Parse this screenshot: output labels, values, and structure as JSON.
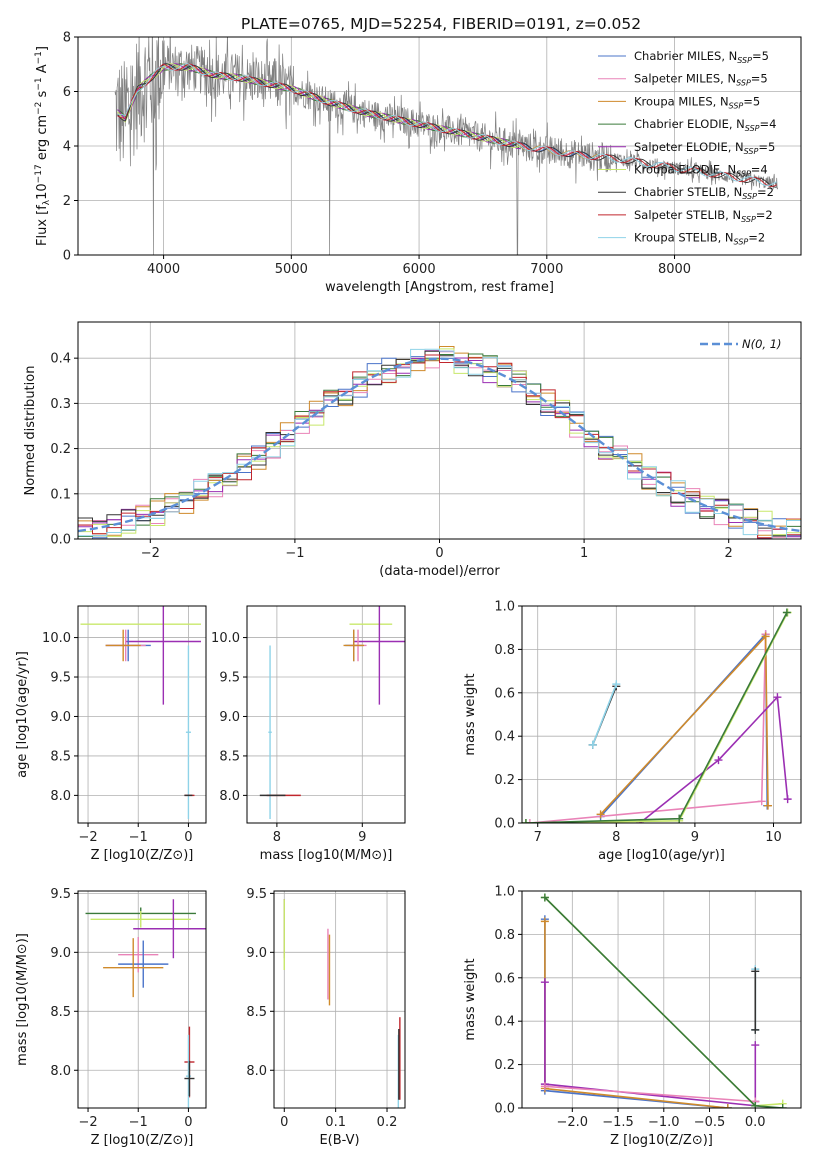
{
  "figure": {
    "title": "PLATE=0765, MJD=52254, FIBERID=0191, z=0.052",
    "colors": {
      "Chabrier MILES": "#4b74c9",
      "Salpeter MILES": "#e983b8",
      "Kroupa MILES": "#cf8a2b",
      "Chabrier ELODIE": "#3a7a3a",
      "Salpeter ELODIE": "#9b2fb3",
      "Kroupa ELODIE": "#c8e86b",
      "Chabrier STELIB": "#333333",
      "Salpeter STELIB": "#c0262d",
      "Kroupa STELIB": "#8fd3e8",
      "data": "#808080",
      "normal": "#5b8fd6"
    }
  },
  "chart_data": [
    {
      "type": "line",
      "id": "spectrum",
      "title": "PLATE=0765, MJD=52254, FIBERID=0191, z=0.052",
      "xlabel": "wavelength [Angstrom, rest frame]",
      "ylabel": "Flux [f_λ 10^-17 erg cm^-2 s^-1 A^-1]",
      "xlim": [
        3330,
        8990
      ],
      "ylim": [
        0,
        8
      ],
      "xticks": [
        4000,
        5000,
        6000,
        7000,
        8000
      ],
      "yticks": [
        0,
        2,
        4,
        6,
        8
      ],
      "legend_position": "top-right",
      "legend": [
        "Chabrier MILES, N_SSP=5",
        "Salpeter MILES, N_SSP=5",
        "Kroupa MILES, N_SSP=5",
        "Chabrier ELODIE, N_SSP=4",
        "Salpeter ELODIE, N_SSP=5",
        "Kroupa ELODIE, N_SSP=4",
        "Chabrier STELIB, N_SSP=2",
        "Salpeter STELIB, N_SSP=2",
        "Kroupa STELIB, N_SSP=2"
      ],
      "continuum": {
        "wavelength": [
          3620,
          3700,
          3800,
          3900,
          4000,
          4200,
          4400,
          4600,
          4800,
          5000,
          5300,
          5600,
          6000,
          6400,
          6800,
          7200,
          7600,
          8000,
          8400,
          8800
        ],
        "flux": [
          5.3,
          5.0,
          6.1,
          6.5,
          6.9,
          6.9,
          6.6,
          6.5,
          6.3,
          6.1,
          5.6,
          5.2,
          4.8,
          4.4,
          4.0,
          3.7,
          3.5,
          3.2,
          2.9,
          2.6
        ]
      }
    },
    {
      "type": "line",
      "id": "residuals",
      "xlabel": "(data-model)/error",
      "ylabel": "Normed distribution",
      "xlim": [
        -2.5,
        2.5
      ],
      "ylim": [
        0,
        0.48
      ],
      "xticks": [
        -2,
        -1,
        0,
        1,
        2
      ],
      "yticks": [
        0.0,
        0.1,
        0.2,
        0.3,
        0.4
      ],
      "legend_position": "top-right",
      "normal_label": "N(0, 1)"
    },
    {
      "type": "scatter",
      "id": "age-vs-z",
      "xlabel": "Z [log10(Z/Z⊙)]",
      "ylabel": "age [log10(age/yr)]",
      "xlim": [
        -2.2,
        0.35
      ],
      "ylim": [
        7.65,
        10.4
      ],
      "xticks": [
        -2,
        -1,
        0
      ],
      "yticks": [
        8.0,
        8.5,
        9.0,
        9.5,
        10.0
      ],
      "points": [
        {
          "series": "Kroupa ELODIE",
          "x": -0.95,
          "y": 10.17,
          "ex": 1.2,
          "ey": 0.0
        },
        {
          "series": "Salpeter ELODIE",
          "x": -0.5,
          "y": 9.95,
          "ex": 0.75,
          "ey": 0.8
        },
        {
          "series": "Chabrier MILES",
          "x": -1.2,
          "y": 9.9,
          "ex": 0.45,
          "ey": 0.2
        },
        {
          "series": "Salpeter MILES",
          "x": -1.25,
          "y": 9.9,
          "ex": 0.4,
          "ey": 0.2
        },
        {
          "series": "Kroupa MILES",
          "x": -1.3,
          "y": 9.9,
          "ex": 0.35,
          "ey": 0.2
        },
        {
          "series": "Kroupa STELIB",
          "x": 0.0,
          "y": 8.8,
          "ex": 0.05,
          "ey": 1.1
        },
        {
          "series": "Salpeter STELIB",
          "x": 0.02,
          "y": 8.0,
          "ex": 0.1,
          "ey": 0.0
        },
        {
          "series": "Chabrier STELIB",
          "x": 0.0,
          "y": 8.0,
          "ex": 0.08,
          "ey": 0.0
        }
      ]
    },
    {
      "type": "scatter",
      "id": "age-vs-mass",
      "xlabel": "mass [log10(M/M⊙)]",
      "ylim": [
        7.65,
        10.4
      ],
      "xlim": [
        7.65,
        9.5
      ],
      "xticks": [
        8,
        9
      ],
      "yticks": [
        8.0,
        8.5,
        9.0,
        9.5,
        10.0
      ],
      "points": [
        {
          "series": "Kroupa ELODIE",
          "x": 9.1,
          "y": 10.17,
          "ex": 0.25,
          "ey": 0.0
        },
        {
          "series": "Salpeter ELODIE",
          "x": 9.2,
          "y": 9.95,
          "ex": 0.3,
          "ey": 0.8
        },
        {
          "series": "Chabrier MILES",
          "x": 8.9,
          "y": 9.9,
          "ex": 0.1,
          "ey": 0.2
        },
        {
          "series": "Salpeter MILES",
          "x": 8.95,
          "y": 9.9,
          "ex": 0.1,
          "ey": 0.2
        },
        {
          "series": "Kroupa MILES",
          "x": 8.9,
          "y": 9.9,
          "ex": 0.12,
          "ey": 0.2
        },
        {
          "series": "Kroupa STELIB",
          "x": 7.92,
          "y": 8.8,
          "ex": 0.02,
          "ey": 1.1
        },
        {
          "series": "Salpeter STELIB",
          "x": 8.08,
          "y": 8.0,
          "ex": 0.2,
          "ey": 0.0
        },
        {
          "series": "Chabrier STELIB",
          "x": 7.95,
          "y": 8.0,
          "ex": 0.15,
          "ey": 0.0
        }
      ]
    },
    {
      "type": "line",
      "id": "weight-vs-age",
      "xlabel": "age [log10(age/yr)]",
      "ylabel": "mass weight",
      "xlim": [
        6.8,
        10.35
      ],
      "ylim": [
        0,
        1
      ],
      "xticks": [
        7,
        8,
        9,
        10
      ],
      "yticks": [
        0.0,
        0.2,
        0.4,
        0.6,
        0.8,
        1.0
      ],
      "series": [
        {
          "name": "Chabrier MILES",
          "x": [
            7.8,
            9.9,
            9.92
          ],
          "y": [
            0.03,
            0.87,
            0.08
          ]
        },
        {
          "name": "Salpeter MILES",
          "x": [
            6.9,
            9.85,
            9.9
          ],
          "y": [
            0.0,
            0.1,
            0.87
          ]
        },
        {
          "name": "Kroupa MILES",
          "x": [
            7.8,
            9.9,
            9.93
          ],
          "y": [
            0.04,
            0.86,
            0.08
          ]
        },
        {
          "name": "Salpeter ELODIE",
          "x": [
            8.3,
            9.3,
            10.05,
            10.18
          ],
          "y": [
            0.0,
            0.29,
            0.58,
            0.11
          ]
        },
        {
          "name": "Kroupa ELODIE",
          "x": [
            6.85,
            8.8,
            10.18
          ],
          "y": [
            0.0,
            0.01,
            0.97
          ]
        },
        {
          "name": "Chabrier ELODIE",
          "x": [
            6.85,
            8.8,
            10.17
          ],
          "y": [
            0.0,
            0.02,
            0.97
          ]
        },
        {
          "name": "Chabrier STELIB",
          "x": [
            7.7,
            8.0
          ],
          "y": [
            0.36,
            0.63
          ]
        },
        {
          "name": "Kroupa STELIB",
          "x": [
            7.7,
            8.0
          ],
          "y": [
            0.36,
            0.64
          ]
        }
      ]
    },
    {
      "type": "scatter",
      "id": "mass-vs-z",
      "xlabel": "Z [log10(Z/Z⊙)]",
      "ylabel": "mass [log10(M/M⊙)]",
      "xlim": [
        -2.2,
        0.35
      ],
      "ylim": [
        7.68,
        9.52
      ],
      "xticks": [
        -2,
        -1,
        0
      ],
      "yticks": [
        8.0,
        8.5,
        9.0,
        9.5
      ],
      "points": [
        {
          "series": "Chabrier ELODIE",
          "x": -0.95,
          "y": 9.33,
          "ex": 1.1,
          "ey": 0.05
        },
        {
          "series": "Kroupa ELODIE",
          "x": -0.95,
          "y": 9.28,
          "ex": 1.0,
          "ey": 0.07
        },
        {
          "series": "Salpeter ELODIE",
          "x": -0.3,
          "y": 9.2,
          "ex": 0.8,
          "ey": 0.25
        },
        {
          "series": "Salpeter MILES",
          "x": -1.0,
          "y": 8.98,
          "ex": 0.4,
          "ey": 0.15
        },
        {
          "series": "Chabrier MILES",
          "x": -0.9,
          "y": 8.9,
          "ex": 0.5,
          "ey": 0.2
        },
        {
          "series": "Kroupa MILES",
          "x": -1.1,
          "y": 8.87,
          "ex": 0.6,
          "ey": 0.25
        },
        {
          "series": "Salpeter STELIB",
          "x": 0.02,
          "y": 8.07,
          "ex": 0.1,
          "ey": 0.3
        },
        {
          "series": "Kroupa STELIB",
          "x": 0.0,
          "y": 7.95,
          "ex": 0.05,
          "ey": 0.35
        },
        {
          "series": "Chabrier STELIB",
          "x": 0.02,
          "y": 7.93,
          "ex": 0.1,
          "ey": 0.15
        }
      ]
    },
    {
      "type": "scatter",
      "id": "mass-vs-ebv",
      "xlabel": "E(B-V)",
      "xlim": [
        -0.02,
        0.235
      ],
      "ylim": [
        7.68,
        9.52
      ],
      "xticks": [
        0.0,
        0.1,
        0.2
      ],
      "yticks": [
        8.0,
        8.5,
        9.0,
        9.5
      ],
      "points": [
        {
          "series": "Salpeter ELODIE",
          "x": 0.0,
          "y": 9.2,
          "ex": 0.0,
          "ey": 0.25
        },
        {
          "series": "Kroupa ELODIE",
          "x": 0.0,
          "y": 9.15,
          "ex": 0.0,
          "ey": 0.3
        },
        {
          "series": "Salpeter MILES",
          "x": 0.085,
          "y": 8.9,
          "ex": 0.0,
          "ey": 0.3
        },
        {
          "series": "Kroupa MILES",
          "x": 0.088,
          "y": 8.85,
          "ex": 0.0,
          "ey": 0.3
        },
        {
          "series": "Salpeter STELIB",
          "x": 0.225,
          "y": 8.1,
          "ex": 0.0,
          "ey": 0.35
        },
        {
          "series": "Kroupa STELIB",
          "x": 0.222,
          "y": 7.95,
          "ex": 0.0,
          "ey": 0.35
        },
        {
          "series": "Chabrier STELIB",
          "x": 0.223,
          "y": 8.05,
          "ex": 0.0,
          "ey": 0.3
        }
      ]
    },
    {
      "type": "line",
      "id": "weight-vs-z",
      "xlabel": "Z [log10(Z/Z⊙)]",
      "ylabel": "mass weight",
      "xlim": [
        -2.55,
        0.5
      ],
      "ylim": [
        0,
        1
      ],
      "xticks": [
        -2.0,
        -1.5,
        -1.0,
        -0.5,
        0.0
      ],
      "yticks": [
        0.0,
        0.2,
        0.4,
        0.6,
        0.8,
        1.0
      ],
      "series": [
        {
          "name": "Chabrier MILES",
          "x": [
            -0.3,
            -2.3,
            -2.3
          ],
          "y": [
            0.0,
            0.08,
            0.87
          ]
        },
        {
          "name": "Kroupa MILES",
          "x": [
            -0.3,
            -2.3,
            -2.3
          ],
          "y": [
            0.0,
            0.09,
            0.86
          ]
        },
        {
          "name": "Salpeter ELODIE",
          "x": [
            -2.3,
            -2.3,
            0.0,
            0.0,
            0.0
          ],
          "y": [
            0.58,
            0.11,
            0.01,
            0.29,
            0.03
          ]
        },
        {
          "name": "Salpeter MILES",
          "x": [
            -2.3,
            0.0
          ],
          "y": [
            0.1,
            0.03
          ]
        },
        {
          "name": "Kroupa ELODIE",
          "x": [
            -2.3,
            0.0,
            0.3
          ],
          "y": [
            0.97,
            0.01,
            0.02
          ]
        },
        {
          "name": "Chabrier ELODIE",
          "x": [
            -2.3,
            0.0,
            0.3
          ],
          "y": [
            0.97,
            0.01,
            0.0
          ]
        },
        {
          "name": "Kroupa STELIB",
          "x": [
            0.0,
            0.0
          ],
          "y": [
            0.36,
            0.64
          ]
        },
        {
          "name": "Chabrier STELIB",
          "x": [
            0.0,
            0.0
          ],
          "y": [
            0.36,
            0.63
          ]
        }
      ]
    }
  ]
}
